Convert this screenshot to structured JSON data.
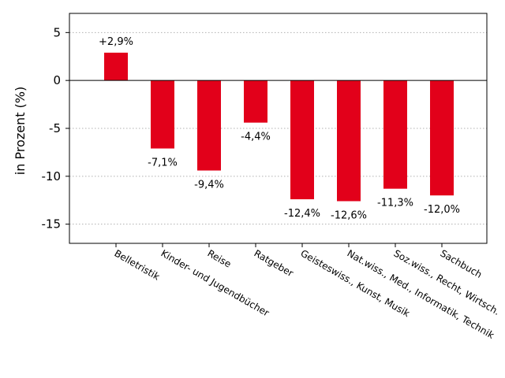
{
  "chart_data": {
    "type": "bar",
    "categories": [
      "Belletristik",
      "Kinder- und Jugendbücher",
      "Reise",
      "Ratgeber",
      "Geisteswiss., Kunst, Musik",
      "Nat.wiss., Med., Informatik, Technik",
      "Soz.wiss., Recht, Wirtsch.",
      "Sachbuch"
    ],
    "values": [
      2.9,
      -7.1,
      -9.4,
      -4.4,
      -12.4,
      -12.6,
      -11.3,
      -12.0
    ],
    "data_labels": [
      "+2,9%",
      "-7,1%",
      "-9,4%",
      "-4,4%",
      "-12,4%",
      "-12,6%",
      "-11,3%",
      "-12,0%"
    ],
    "ylabel": "in Prozent (%)",
    "xlabel": "",
    "title": "",
    "ylim": [
      -17,
      7
    ],
    "yticks": [
      5,
      0,
      -5,
      -10,
      -15
    ],
    "ytick_labels": [
      "5",
      "0",
      "-5",
      "-10",
      "-15"
    ],
    "grid": "horizontal dotted",
    "bar_color": "#e2001a"
  }
}
